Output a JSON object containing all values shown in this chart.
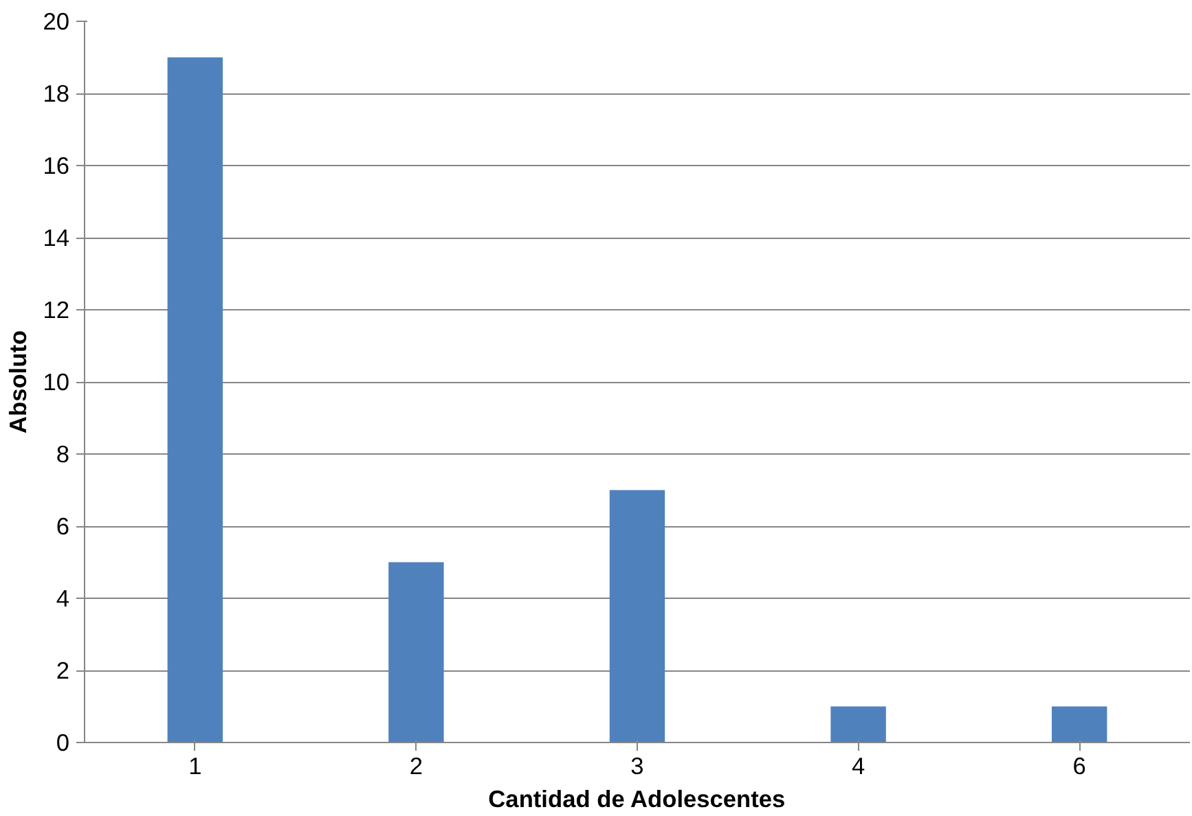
{
  "chart_data": {
    "type": "bar",
    "xlabel": "Cantidad de Adolescentes",
    "ylabel": "Absoluto",
    "categories": [
      "1",
      "2",
      "3",
      "4",
      "6"
    ],
    "values": [
      19,
      5,
      7,
      1,
      1
    ],
    "color": "#4f81bd",
    "ylim": [
      0,
      20
    ],
    "yticks": [
      0,
      2,
      4,
      6,
      8,
      10,
      12,
      14,
      16,
      18,
      20
    ],
    "grid": "y"
  }
}
